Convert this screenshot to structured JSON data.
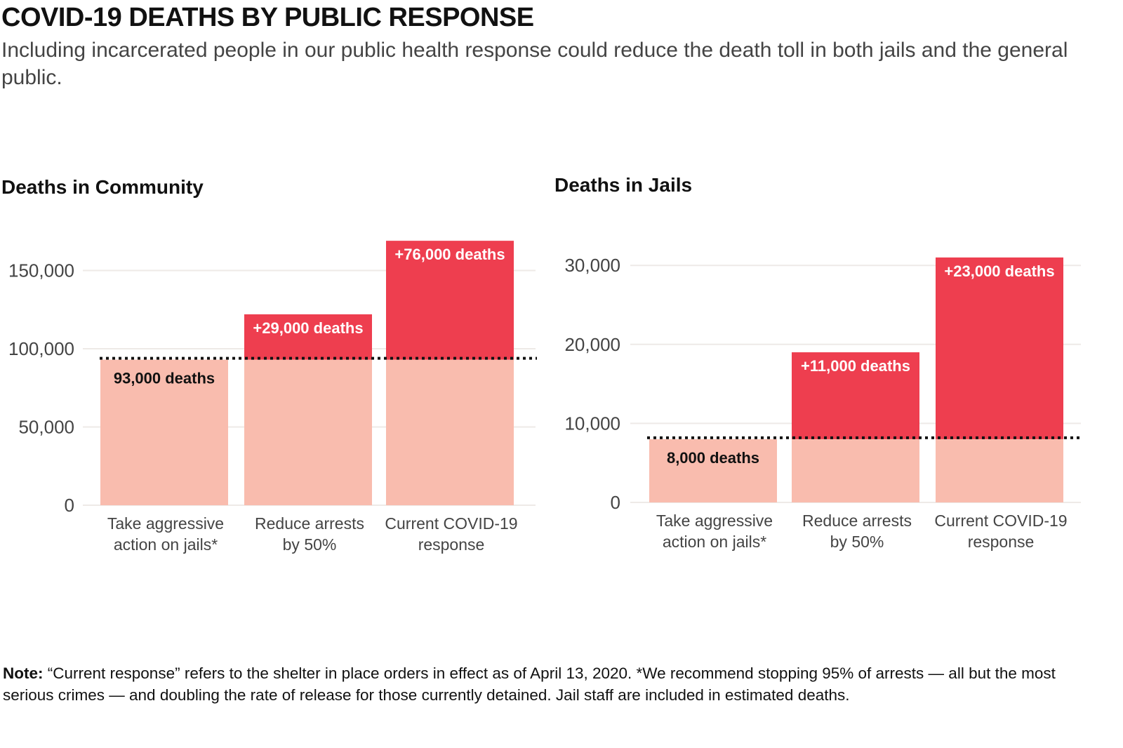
{
  "title": "COVID-19 DEATHS BY PUBLIC RESPONSE",
  "subtitle": "Including incarcerated people in our public health response could reduce the death toll in both jails and the general public.",
  "note": {
    "label": "Note:",
    "text": " “Current response” refers to the shelter in place orders in effect as of April 13, 2020. *We recommend stopping 95% of arrests — all but the most serious crimes — and doubling the rate of release for those currently detained. Jail staff are included in estimated deaths."
  },
  "colors": {
    "base": "#F9BCAE",
    "added": "#EE3E4F",
    "grid": "#EEEAE7",
    "baseline_dotted": "#111111"
  },
  "chart_data": [
    {
      "type": "bar",
      "stacked": true,
      "title": "Deaths in Community",
      "categories": [
        [
          "Take aggressive",
          "action on jails*"
        ],
        [
          "Reduce arrests",
          "by 50%"
        ],
        [
          "Current COVID-19",
          "response"
        ]
      ],
      "series": [
        {
          "values": [
            93000,
            93000,
            93000
          ],
          "labels": [
            "93,000 deaths",
            "",
            ""
          ]
        },
        {
          "values": [
            0,
            29000,
            76000
          ],
          "labels": [
            "",
            "+29,000 deaths",
            "+76,000 deaths"
          ]
        }
      ],
      "reference_line": 93000,
      "yticks": [
        0,
        50000,
        100000,
        150000
      ],
      "ytick_labels": [
        "0",
        "50,000",
        "100,000",
        "150,000"
      ],
      "ylim": [
        0,
        169000
      ],
      "grid": true
    },
    {
      "type": "bar",
      "stacked": true,
      "title": "Deaths in Jails",
      "categories": [
        [
          "Take aggressive",
          "action on jails*"
        ],
        [
          "Reduce arrests",
          "by 50%"
        ],
        [
          "Current COVID-19",
          "response"
        ]
      ],
      "series": [
        {
          "values": [
            8000,
            8000,
            8000
          ],
          "labels": [
            "8,000 deaths",
            "",
            ""
          ]
        },
        {
          "values": [
            0,
            11000,
            23000
          ],
          "labels": [
            "",
            "+11,000 deaths",
            "+23,000 deaths"
          ]
        }
      ],
      "reference_line": 8000,
      "yticks": [
        0,
        10000,
        20000,
        30000
      ],
      "ytick_labels": [
        "0",
        "10,000",
        "20,000",
        "30,000"
      ],
      "ylim": [
        0,
        31000
      ],
      "grid": true
    }
  ]
}
